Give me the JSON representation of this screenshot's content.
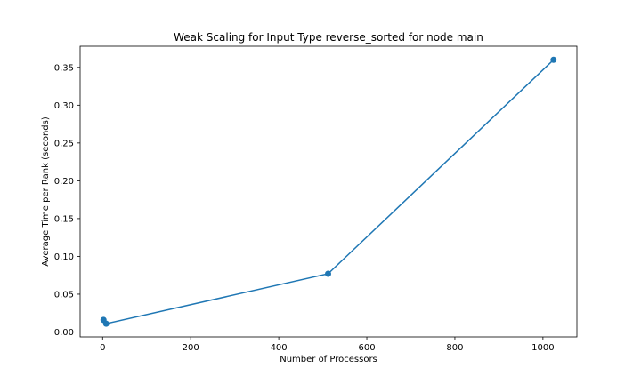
{
  "chart_data": {
    "type": "line",
    "title": "Weak Scaling for Input Type reverse_sorted for node main",
    "xlabel": "Number of Processors",
    "ylabel": "Average Time per Rank (seconds)",
    "xlim": [
      -51.1,
      1077.1
    ],
    "ylim": [
      -0.0065,
      0.378
    ],
    "xticks": [
      0,
      200,
      400,
      600,
      800,
      1000
    ],
    "xtick_labels": [
      "0",
      "200",
      "400",
      "600",
      "800",
      "1000"
    ],
    "yticks": [
      0.0,
      0.05,
      0.1,
      0.15,
      0.2,
      0.25,
      0.3,
      0.35
    ],
    "ytick_labels": [
      "0.00",
      "0.05",
      "0.10",
      "0.15",
      "0.20",
      "0.25",
      "0.30",
      "0.35"
    ],
    "grid": false,
    "series": [
      {
        "color": "#1f77b4",
        "marker": "circle",
        "x": [
          2,
          8,
          512,
          1024
        ],
        "y": [
          0.016,
          0.011,
          0.077,
          0.36
        ]
      }
    ]
  }
}
